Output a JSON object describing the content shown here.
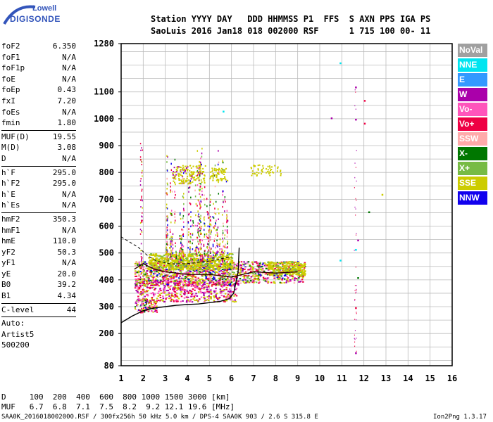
{
  "logo": {
    "line1": "Lowell",
    "line2": "DIGISONDE"
  },
  "header": {
    "line1": "Station YYYY DAY   DDD HHMMSS P1  FFS  S AXN PPS IGA PS",
    "line2": "SaoLuis 2016 Jan18 018 002000 RSF      1 715 100 00- 11"
  },
  "params": {
    "group1": [
      {
        "k": "foF2",
        "v": "6.350"
      },
      {
        "k": "foF1",
        "v": "N/A"
      },
      {
        "k": "foF1p",
        "v": "N/A"
      },
      {
        "k": "foE",
        "v": "N/A"
      },
      {
        "k": "foEp",
        "v": "0.43"
      },
      {
        "k": "fxI",
        "v": "7.20"
      },
      {
        "k": "foEs",
        "v": "N/A"
      },
      {
        "k": "fmin",
        "v": "1.80"
      }
    ],
    "group2": [
      {
        "k": "MUF(D)",
        "v": "19.55"
      },
      {
        "k": "M(D)",
        "v": "3.08"
      },
      {
        "k": "D",
        "v": "N/A"
      }
    ],
    "group3": [
      {
        "k": "h`F",
        "v": "295.0"
      },
      {
        "k": "h`F2",
        "v": "295.0"
      },
      {
        "k": "h`E",
        "v": "N/A"
      },
      {
        "k": "h`Es",
        "v": "N/A"
      }
    ],
    "group4": [
      {
        "k": "hmF2",
        "v": "350.3"
      },
      {
        "k": "hmF1",
        "v": "N/A"
      },
      {
        "k": "hmE",
        "v": "110.0"
      },
      {
        "k": "yF2",
        "v": "50.3"
      },
      {
        "k": "yF1",
        "v": "N/A"
      },
      {
        "k": "yE",
        "v": "20.0"
      },
      {
        "k": "B0",
        "v": "39.2"
      },
      {
        "k": "B1",
        "v": "4.34"
      }
    ],
    "clevel": {
      "k": "C-level",
      "v": "44"
    },
    "auto": [
      "Auto:",
      "Artist5",
      "500200"
    ]
  },
  "legend": [
    {
      "label": "NoVal",
      "color": "#a0a0a0"
    },
    {
      "label": "NNE",
      "color": "#00e5f0"
    },
    {
      "label": "E",
      "color": "#3399ff"
    },
    {
      "label": "W",
      "color": "#aa00aa"
    },
    {
      "label": "Vo-",
      "color": "#ff55bb"
    },
    {
      "label": "Vo+",
      "color": "#ee0044"
    },
    {
      "label": "SSW",
      "color": "#ffaaaa"
    },
    {
      "label": "X-",
      "color": "#007700"
    },
    {
      "label": "X+",
      "color": "#77bb44"
    },
    {
      "label": "SSE",
      "color": "#cccc00"
    },
    {
      "label": "NNW",
      "color": "#1100ee"
    }
  ],
  "bottom": {
    "d_row": "D     100  200  400  600  800 1000 1500 3000 [km]",
    "muf_row": "MUF   6.7  6.8  7.1  7.5  8.2  9.2 12.1 19.6 [MHz]"
  },
  "footer": {
    "left": "SAA0K_2016018002000.RSF / 300fx256h 50 kHz 5.0 km / DPS-4 SAA0K 903 / 2.6 S 315.8 E",
    "right": "Ion2Png 1.3.17"
  },
  "chart_data": {
    "type": "scatter",
    "title": "",
    "xlabel": "",
    "ylabel": "",
    "xlim": [
      1,
      16
    ],
    "ylim": [
      80,
      1280
    ],
    "x_ticks": [
      1,
      2,
      3,
      4,
      5,
      6,
      7,
      8,
      9,
      10,
      11,
      12,
      13,
      14,
      15,
      16
    ],
    "y_ticks": [
      80,
      200,
      300,
      400,
      500,
      600,
      700,
      800,
      900,
      1000,
      1100,
      1280
    ],
    "grid": true,
    "legend_position": "right",
    "o_trace": [
      {
        "x": 1.6,
        "y": 440
      },
      {
        "x": 2.0,
        "y": 460
      },
      {
        "x": 2.5,
        "y": 440
      },
      {
        "x": 3.0,
        "y": 430
      },
      {
        "x": 3.5,
        "y": 425
      },
      {
        "x": 4.0,
        "y": 420
      },
      {
        "x": 4.5,
        "y": 420
      },
      {
        "x": 5.0,
        "y": 420
      },
      {
        "x": 5.5,
        "y": 415
      },
      {
        "x": 6.0,
        "y": 410
      },
      {
        "x": 7.0,
        "y": 430
      },
      {
        "x": 8.0,
        "y": 425
      },
      {
        "x": 9.0,
        "y": 430
      }
    ],
    "profile_line": [
      {
        "x": 1.0,
        "y": 240
      },
      {
        "x": 1.5,
        "y": 265
      },
      {
        "x": 2.0,
        "y": 285
      },
      {
        "x": 2.5,
        "y": 295
      },
      {
        "x": 3.0,
        "y": 300
      },
      {
        "x": 3.5,
        "y": 305
      },
      {
        "x": 4.0,
        "y": 308
      },
      {
        "x": 4.5,
        "y": 310
      },
      {
        "x": 5.0,
        "y": 315
      },
      {
        "x": 5.5,
        "y": 320
      },
      {
        "x": 5.9,
        "y": 330
      },
      {
        "x": 6.1,
        "y": 350
      },
      {
        "x": 6.3,
        "y": 430
      },
      {
        "x": 6.35,
        "y": 520
      }
    ],
    "dashed_line": [
      {
        "x": 1.0,
        "y": 560
      },
      {
        "x": 1.4,
        "y": 540
      },
      {
        "x": 1.8,
        "y": 520
      },
      {
        "x": 2.2,
        "y": 490
      },
      {
        "x": 2.6,
        "y": 470
      },
      {
        "x": 3.2,
        "y": 460
      },
      {
        "x": 4.0,
        "y": 460
      },
      {
        "x": 5.0,
        "y": 470
      },
      {
        "x": 5.6,
        "y": 480
      },
      {
        "x": 6.0,
        "y": 485
      }
    ],
    "isolated_points": [
      {
        "x": 10.9,
        "y": 1210,
        "color": "#00e5f0"
      },
      {
        "x": 11.6,
        "y": 1120,
        "color": "#aa00aa"
      },
      {
        "x": 11.6,
        "y": 1000,
        "color": "#aa00aa"
      },
      {
        "x": 12.0,
        "y": 1070,
        "color": "#ee0044"
      },
      {
        "x": 12.0,
        "y": 985,
        "color": "#ee0044"
      },
      {
        "x": 10.5,
        "y": 1005,
        "color": "#aa00aa"
      },
      {
        "x": 12.2,
        "y": 655,
        "color": "#007700"
      },
      {
        "x": 12.8,
        "y": 720,
        "color": "#cccc00"
      },
      {
        "x": 11.7,
        "y": 550,
        "color": "#aa00aa"
      },
      {
        "x": 11.6,
        "y": 515,
        "color": "#00e5f0"
      },
      {
        "x": 10.9,
        "y": 475,
        "color": "#00e5f0"
      },
      {
        "x": 11.6,
        "y": 298,
        "color": "#ee0044"
      },
      {
        "x": 11.6,
        "y": 130,
        "color": "#aa00aa"
      },
      {
        "x": 5.6,
        "y": 1030,
        "color": "#00e5f0"
      },
      {
        "x": 11.7,
        "y": 410,
        "color": "#007700"
      }
    ]
  }
}
